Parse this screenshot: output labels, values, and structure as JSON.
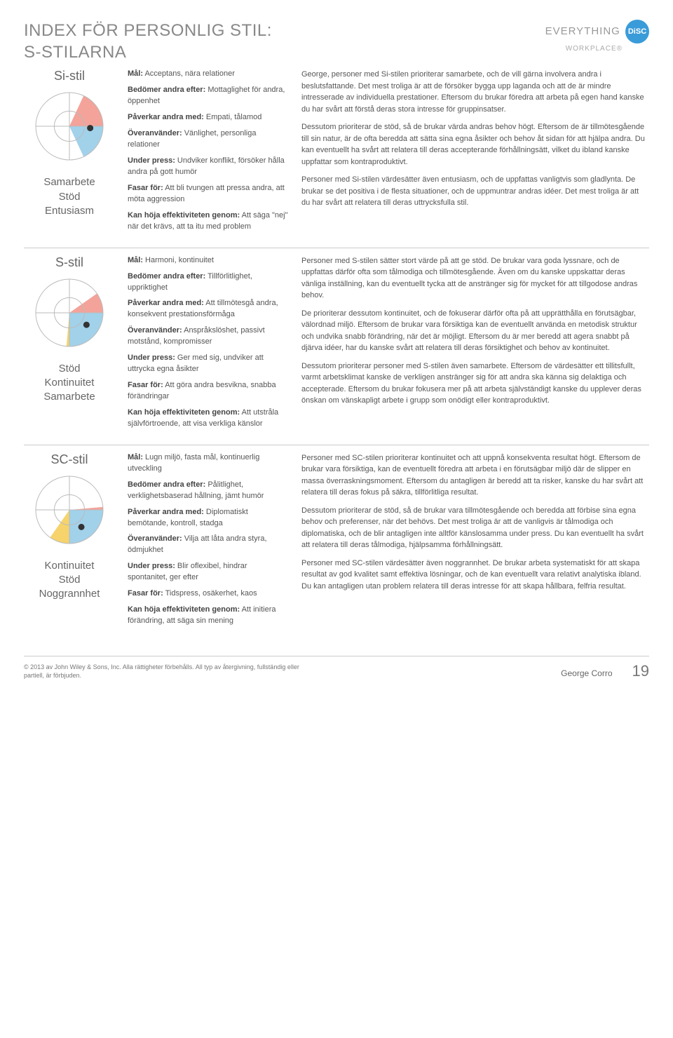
{
  "title_line1": "INDEX FÖR PERSONLIG STIL:",
  "title_line2": "S-STILARNA",
  "logo": {
    "text": "EVERYTHING",
    "badge_prefix": "D",
    "badge_lo": "i",
    "badge_suffix": "SC",
    "sub": "WORKPLACE®",
    "badge_bg": "#3a9bd9"
  },
  "colors": {
    "d_quadrant": "#a7d9a0",
    "i_quadrant": "#f3a39a",
    "s_quadrant": "#a2d1ea",
    "c_quadrant": "#f6d36b",
    "wheel_stroke": "#bbbbbb",
    "dot": "#333333"
  },
  "sections": [
    {
      "id": "si",
      "style_name": "Si-stil",
      "keywords": [
        "Samarbete",
        "Stöd",
        "Entusiasm"
      ],
      "shade": {
        "start": 25,
        "end": 155
      },
      "dot": {
        "angle": 95,
        "r": 0.62
      },
      "traits": [
        {
          "label": "Mål:",
          "text": " Acceptans, nära relationer"
        },
        {
          "label": "Bedömer andra efter:",
          "text": " Mottaglighet för andra, öppenhet"
        },
        {
          "label": "Påverkar andra med:",
          "text": " Empati, tålamod"
        },
        {
          "label": "Överanvänder:",
          "text": " Vänlighet, personliga relationer"
        },
        {
          "label": "Under press:",
          "text": " Undviker konflikt, försöker hålla andra på gott humör"
        },
        {
          "label": "Fasar för:",
          "text": " Att bli tvungen att pressa andra, att möta aggression"
        },
        {
          "label": "Kan höja effektiviteten genom:",
          "text": " Att säga \"nej\" när det krävs, att ta itu med problem"
        }
      ],
      "paragraphs": [
        "George, personer med Si-stilen prioriterar samarbete, och de vill gärna involvera andra i beslutsfattande. Det mest troliga är att de försöker bygga upp laganda och att de är mindre intresserade av individuella prestationer. Eftersom du brukar föredra att arbeta på egen hand kanske du har svårt att förstå deras stora intresse för gruppinsatser.",
        "Dessutom prioriterar de stöd, så de brukar värda andras behov högt. Eftersom de är tillmötesgående till sin natur, är de ofta beredda att sätta sina egna åsikter och behov åt sidan för att hjälpa andra. Du kan eventuellt ha svårt att relatera till deras accepterande förhållningsätt, vilket du ibland kanske uppfattar som kontraproduktivt.",
        "Personer med Si-stilen värdesätter även entusiasm, och de uppfattas vanligtvis som gladlynta. De brukar se det positiva i de flesta situationer, och de uppmuntrar andras idéer. Det mest troliga är att du har svårt att relatera till deras uttrycksfulla stil."
      ]
    },
    {
      "id": "s",
      "style_name": "S-stil",
      "keywords": [
        "Stöd",
        "Kontinuitet",
        "Samarbete"
      ],
      "shade": {
        "start": 55,
        "end": 185
      },
      "dot": {
        "angle": 125,
        "r": 0.62
      },
      "traits": [
        {
          "label": "Mål:",
          "text": " Harmoni, kontinuitet"
        },
        {
          "label": "Bedömer andra efter:",
          "text": " Tillförlitlighet, uppriktighet"
        },
        {
          "label": "Påverkar andra med:",
          "text": " Att tillmötesgå andra, konsekvent prestationsförmåga"
        },
        {
          "label": "Överanvänder:",
          "text": " Anspråkslöshet, passivt motstånd, kompromisser"
        },
        {
          "label": "Under press:",
          "text": " Ger med sig, undviker att uttrycka egna åsikter"
        },
        {
          "label": "Fasar för:",
          "text": " Att göra andra besvikna, snabba förändringar"
        },
        {
          "label": "Kan höja effektiviteten genom:",
          "text": " Att utstråla självförtroende, att visa verkliga känslor"
        }
      ],
      "paragraphs": [
        "Personer med S-stilen sätter stort värde på att ge stöd. De brukar vara goda lyssnare, och de uppfattas därför ofta som tålmodiga och tillmötesgående. Även om du kanske uppskattar deras vänliga inställning, kan du eventuellt tycka att de anstränger sig för mycket för att tillgodose andras behov.",
        "De prioriterar dessutom kontinuitet, och de fokuserar därför ofta på att upprätthålla en förutsägbar, välordnad miljö. Eftersom de brukar vara försiktiga kan de eventuellt använda en metodisk struktur och undvika snabb förändring, när det är möjligt. Eftersom du är mer beredd att agera snabbt på djärva idéer, har du kanske svårt att relatera till deras försiktighet och behov av kontinuitet.",
        "Dessutom prioriterar personer med S-stilen även samarbete. Eftersom de värdesätter ett tillitsfullt, varmt arbetsklimat kanske de verkligen anstränger sig för att andra ska känna sig delaktiga och accepterade. Eftersom du brukar fokusera mer på att arbeta självständigt kanske du upplever deras önskan om vänskapligt arbete i grupp som onödigt eller kontraproduktivt."
      ]
    },
    {
      "id": "sc",
      "style_name": "SC-stil",
      "keywords": [
        "Kontinuitet",
        "Stöd",
        "Noggrannhet"
      ],
      "shade": {
        "start": 85,
        "end": 215
      },
      "dot": {
        "angle": 145,
        "r": 0.62
      },
      "traits": [
        {
          "label": "Mål:",
          "text": " Lugn miljö, fasta mål, kontinuerlig utveckling"
        },
        {
          "label": "Bedömer andra efter:",
          "text": " Pålitlighet, verklighetsbaserad hållning, jämt humör"
        },
        {
          "label": "Påverkar andra med:",
          "text": " Diplomatiskt bemötande, kontroll, stadga"
        },
        {
          "label": "Överanvänder:",
          "text": " Vilja att låta andra styra, ödmjukhet"
        },
        {
          "label": "Under press:",
          "text": " Blir oflexibel, hindrar spontanitet, ger efter"
        },
        {
          "label": "Fasar för:",
          "text": " Tidspress, osäkerhet, kaos"
        },
        {
          "label": "Kan höja effektiviteten genom:",
          "text": " Att initiera förändring, att säga sin mening"
        }
      ],
      "paragraphs": [
        "Personer med SC-stilen prioriterar kontinuitet och att uppnå konsekventa resultat högt. Eftersom de brukar vara försiktiga, kan de eventuellt föredra att arbeta i en förutsägbar miljö där de slipper en massa överraskningsmoment. Eftersom du antagligen är beredd att ta risker, kanske du har svårt att relatera till deras fokus på säkra, tillförlitliga resultat.",
        "Dessutom prioriterar de stöd, så de brukar vara tillmötesgående och beredda att förbise sina egna behov och preferenser, när det behövs. Det mest troliga är att de vanligvis är tålmodiga och diplomatiska, och de blir antagligen inte alltför känslosamma under press. Du kan eventuellt ha svårt att relatera till deras tålmodiga, hjälpsamma förhållningsätt.",
        "Personer med SC-stilen värdesätter även noggrannhet. De brukar arbeta systematiskt för att skapa resultat av god kvalitet samt effektiva lösningar, och de kan eventuellt vara relativt analytiska ibland. Du kan antagligen utan problem relatera till deras intresse för att skapa hållbara, felfria resultat."
      ]
    }
  ],
  "footer": {
    "copyright": "© 2013 av John Wiley & Sons, Inc. Alla rättigheter förbehålls. All typ av återgivning, fullständig eller partiell, är förbjuden.",
    "name": "George Corro",
    "page": "19"
  }
}
